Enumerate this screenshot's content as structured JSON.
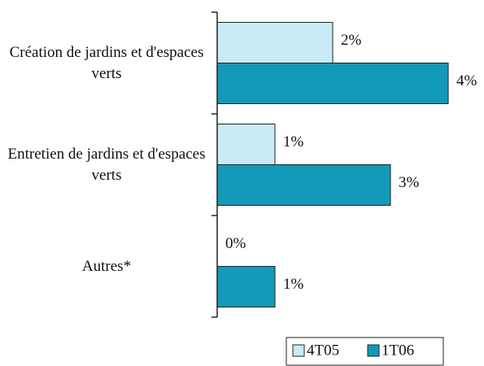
{
  "chart_data": {
    "type": "hbar",
    "categories": [
      "Création de jardins et d'espaces verts",
      "Entretien de jardins et d'espaces verts",
      "Autres*"
    ],
    "series": [
      {
        "name": "4T05",
        "color": "#c9ebf8",
        "values": [
          2,
          1,
          0
        ],
        "value_labels": [
          "2%",
          "1%",
          "0%"
        ]
      },
      {
        "name": "1T06",
        "color": "#139ab8",
        "values": [
          4,
          3,
          1
        ],
        "value_labels": [
          "4%",
          "3%",
          "1%"
        ]
      }
    ],
    "legend": "bottom-right"
  }
}
